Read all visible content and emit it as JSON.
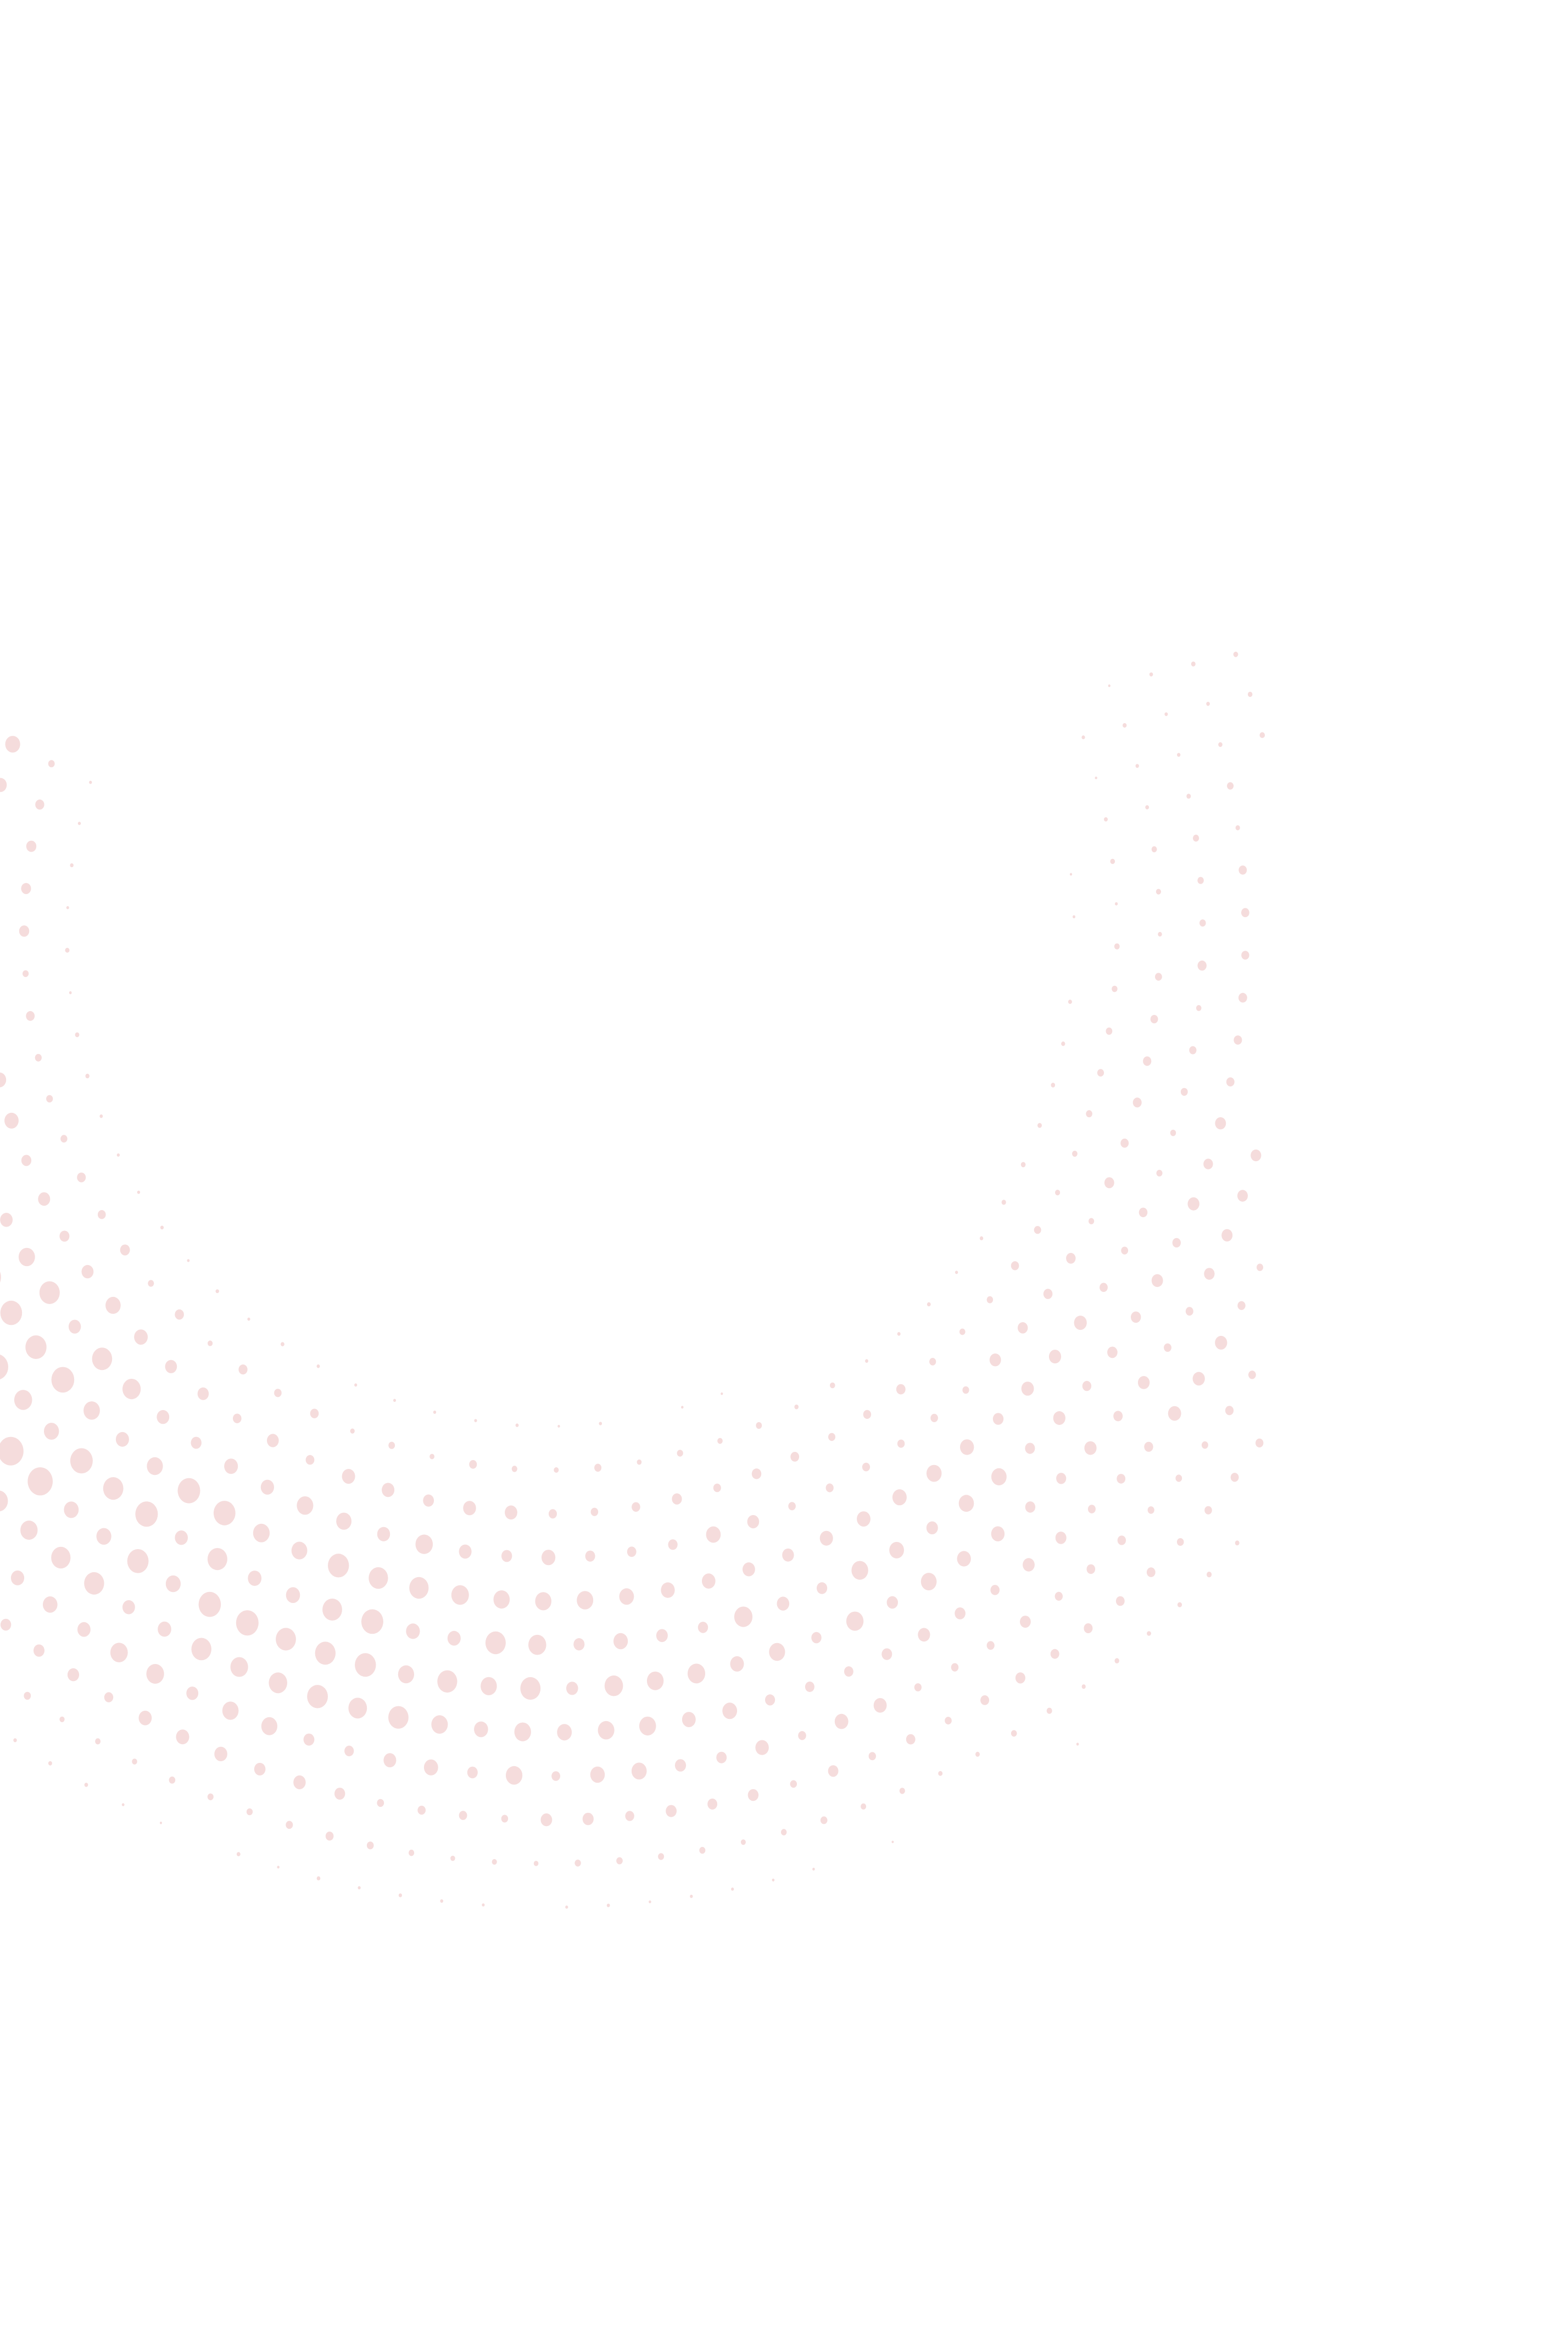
{
  "background": {
    "color": "#ffffff",
    "pattern": {
      "type": "halftone-dot-arc",
      "dot_color": "#f5dcdc"
    }
  }
}
